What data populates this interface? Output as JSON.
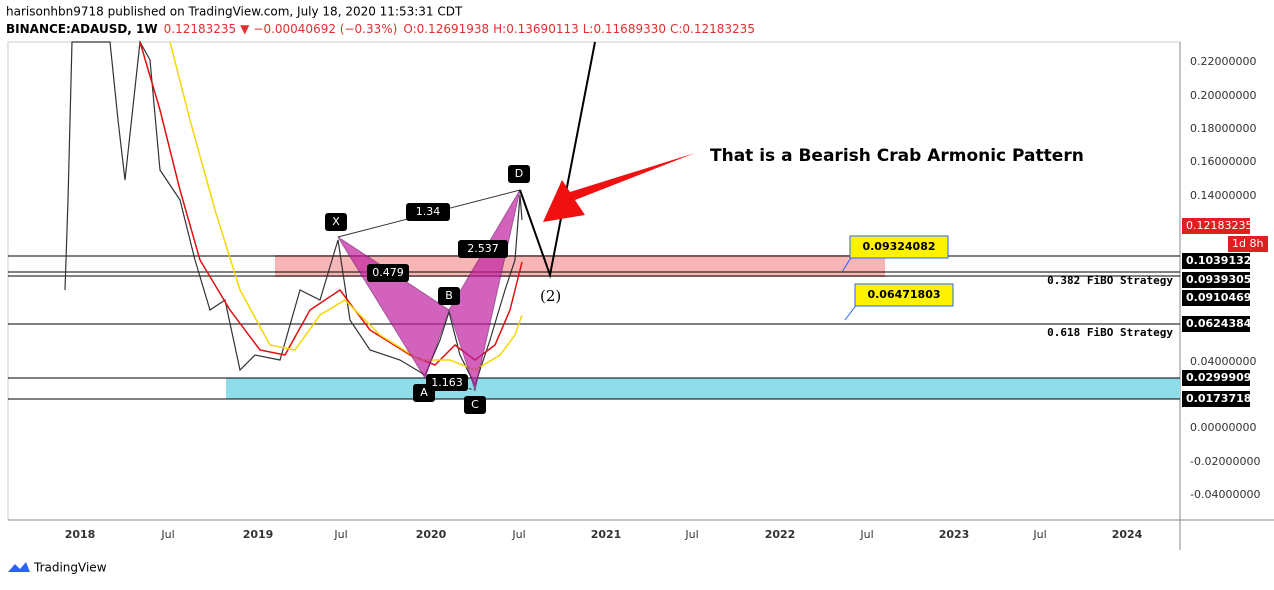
{
  "header": {
    "publisher": "harisonhbn9718 published on TradingView.com, July 18, 2020 11:53:31 CDT",
    "symbol": "BINANCE:ADAUSD, 1W",
    "last": "0.12183235",
    "change": "−0.00040692 (−0.33%)",
    "open": "O:0.12691938",
    "high": "H:0.13690113",
    "low": "L:0.11689330",
    "close": "C:0.12183235"
  },
  "price_axis": [
    "0.22000000",
    "0.20000000",
    "0.18000000",
    "0.16000000",
    "0.14000000",
    "0.04000000",
    "0.00000000",
    "-0.02000000",
    "-0.04000000"
  ],
  "price_labels": [
    "0.12183235",
    "1d 8h",
    "0.10391320",
    "0.09393058",
    "0.09104695",
    "0.06243845",
    "0.02999097",
    "0.01737188"
  ],
  "time_axis": [
    "2018",
    "Jul",
    "2019",
    "Jul",
    "2020",
    "Jul",
    "2021",
    "Jul",
    "2022",
    "Jul",
    "2023",
    "Jul",
    "2024"
  ],
  "pattern": {
    "points": [
      "X",
      "A",
      "B",
      "C",
      "D"
    ],
    "ratios": [
      "1.34",
      "0.479",
      "2.537",
      "1.163"
    ],
    "wave": "(2)"
  },
  "callout": "That is a Bearish Crab Armonic Pattern",
  "fibo": {
    "upper_value": "0.09324082",
    "lower_value": "0.06471803",
    "upper_name": "0.382 FiBO Strategy",
    "lower_name": "0.618 FiBO Strategy"
  },
  "footer": "TradingView"
}
